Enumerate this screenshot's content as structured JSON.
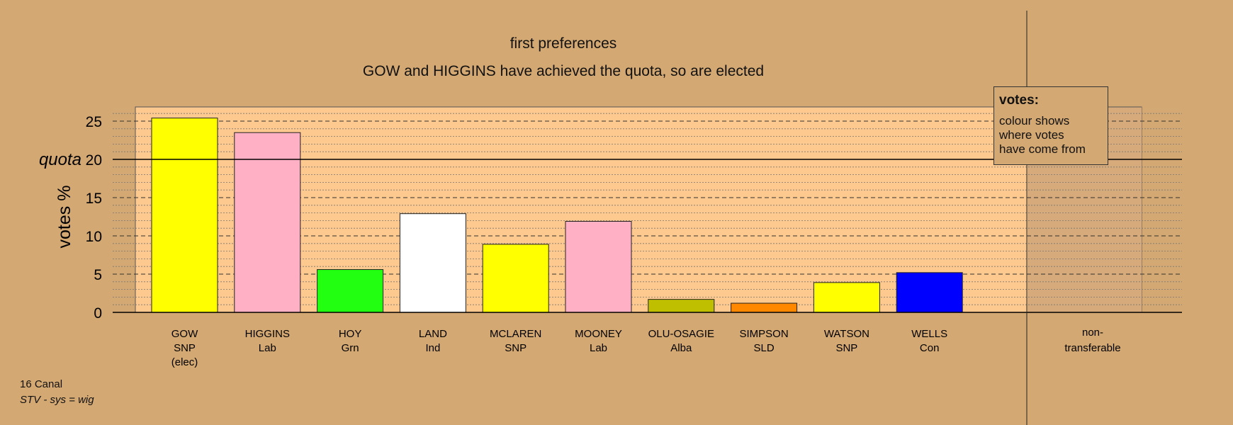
{
  "title": "first preferences",
  "subtitle": "GOW and HIGGINS have achieved the quota, so are elected",
  "footer": {
    "ward": "16 Canal",
    "system": "STV - sys = wig"
  },
  "legend": {
    "title": "votes:",
    "lines": [
      "colour shows",
      "where votes",
      "have come from"
    ]
  },
  "colors": {
    "background": "#d4a872",
    "plot_panel": "#fec98f",
    "nontransferable_panel": "#d6aa7a"
  },
  "chart_data": {
    "type": "bar",
    "ylabel": "votes %",
    "ylim": [
      0,
      25
    ],
    "yticks": [
      0,
      5,
      10,
      15,
      20,
      25
    ],
    "quota": {
      "label": "quota",
      "value": 20
    },
    "grid": true,
    "categories": [
      {
        "name": "GOW",
        "party": "SNP",
        "note": "(elec)",
        "value": 25.4,
        "color": "#ffff00"
      },
      {
        "name": "HIGGINS",
        "party": "Lab",
        "note": "",
        "value": 23.5,
        "color": "#ffb0c4"
      },
      {
        "name": "HOY",
        "party": "Grn",
        "note": "",
        "value": 5.6,
        "color": "#22ff11"
      },
      {
        "name": "LAND",
        "party": "Ind",
        "note": "",
        "value": 12.9,
        "color": "#ffffff"
      },
      {
        "name": "MCLAREN",
        "party": "SNP",
        "note": "",
        "value": 8.9,
        "color": "#ffff00"
      },
      {
        "name": "MOONEY",
        "party": "Lab",
        "note": "",
        "value": 11.9,
        "color": "#ffb0c4"
      },
      {
        "name": "OLU-OSAGIE",
        "party": "Alba",
        "note": "",
        "value": 1.7,
        "color": "#bfbf00"
      },
      {
        "name": "SIMPSON",
        "party": "SLD",
        "note": "",
        "value": 1.2,
        "color": "#ff8800"
      },
      {
        "name": "WATSON",
        "party": "SNP",
        "note": "",
        "value": 3.9,
        "color": "#ffff00"
      },
      {
        "name": "WELLS",
        "party": "Con",
        "note": "",
        "value": 5.2,
        "color": "#0000ff"
      }
    ],
    "nontransferable": {
      "line1": "non-",
      "line2": "transferable",
      "value": 0
    }
  }
}
